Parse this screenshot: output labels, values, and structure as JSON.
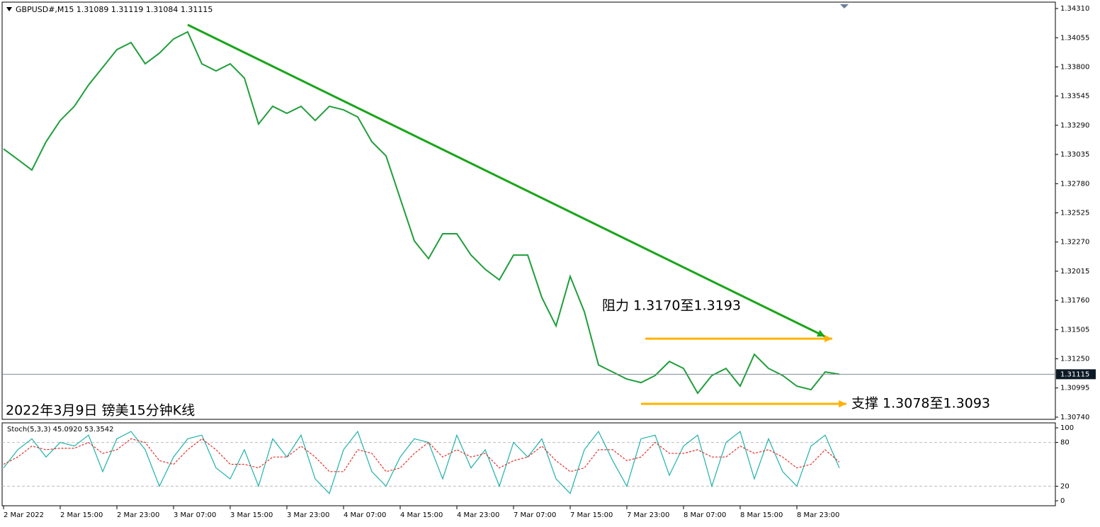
{
  "chart_data": [
    {
      "type": "line",
      "title": "GBPUSD#,M15  1.31089 1.31119 1.31084 1.31115",
      "caption": "2022年3月9日 镑美15分钟K线",
      "resistance_label": "阻力 1.3170至1.3193",
      "support_label": "支撑 1.3078至1.3093",
      "categories": [
        "2 Mar 2022",
        null,
        null,
        null,
        "2 Mar 15:00",
        null,
        null,
        null,
        "2 Mar 23:00",
        null,
        null,
        null,
        "3 Mar 07:00",
        null,
        null,
        null,
        "3 Mar 15:00",
        null,
        null,
        null,
        "3 Mar 23:00",
        null,
        null,
        null,
        "4 Mar 07:00",
        null,
        null,
        null,
        "4 Mar 15:00",
        null,
        null,
        null,
        "4 Mar 23:00",
        null,
        null,
        null,
        "7 Mar 07:00",
        null,
        null,
        null,
        "7 Mar 15:00",
        null,
        null,
        null,
        "7 Mar 23:00",
        null,
        null,
        null,
        "8 Mar 07:00",
        null,
        null,
        null,
        "8 Mar 15:00",
        null,
        null,
        null,
        "8 Mar 23:00",
        null,
        null,
        null
      ],
      "series": [
        {
          "name": "GBPUSD#",
          "color": "#1f9e3a",
          "values": [
            1.33084,
            1.32992,
            1.32899,
            1.33146,
            1.33332,
            1.33456,
            1.33642,
            1.33796,
            1.33951,
            1.34013,
            1.33827,
            1.3392,
            1.34044,
            1.34106,
            1.33827,
            1.33765,
            1.33827,
            1.33703,
            1.33301,
            1.33456,
            1.33394,
            1.33456,
            1.33332,
            1.33456,
            1.33425,
            1.33363,
            1.33146,
            1.33023,
            1.32651,
            1.3228,
            1.32125,
            1.32342,
            1.32342,
            1.32156,
            1.32032,
            1.31939,
            1.32156,
            1.32156,
            1.31785,
            1.31537,
            1.3197,
            1.31661,
            1.31196,
            1.31135,
            1.31073,
            1.31042,
            1.31104,
            1.31227,
            1.31166,
            1.30949,
            1.31104,
            1.31166,
            1.31011,
            1.31289,
            1.31166,
            1.31104,
            1.31011,
            1.3098,
            1.31135,
            1.31115
          ]
        }
      ],
      "current_price": 1.31115,
      "trendlines": [
        {
          "color": "#1aa51a",
          "x": [
            13,
            58
          ],
          "y": [
            1.34168,
            1.31444
          ]
        },
        {
          "color": "#ffb300",
          "x": [
            45.3,
            58.5
          ],
          "y": [
            1.31426,
            1.31426
          ]
        },
        {
          "color": "#ffb300",
          "x": [
            45,
            59.5
          ],
          "y": [
            1.30856,
            1.30856
          ]
        }
      ],
      "ylim": [
        1.30721,
        1.34366
      ],
      "yticks": [
        {
          "value": 1.3431,
          "label": "1.34310"
        },
        1.34055,
        {
          "value": 1.338,
          "label": "1.33800"
        },
        1.33545,
        {
          "value": 1.3329,
          "label": "1.33290"
        },
        1.33035,
        {
          "value": 1.3278,
          "label": "1.32780"
        },
        1.32525,
        {
          "value": 1.3227,
          "label": "1.32270"
        },
        1.32015,
        {
          "value": 1.3176,
          "label": "1.31760"
        },
        1.31505,
        {
          "value": 1.3125,
          "label": "1.31250"
        },
        1.30995,
        {
          "value": 1.3074,
          "label": "1.30740"
        }
      ]
    },
    {
      "type": "line",
      "title": "Stoch(5,3,3) 45.0920 53.3542",
      "series": [
        {
          "name": "%K",
          "color": "#20b2aa",
          "values": [
            45,
            70,
            85,
            60,
            80,
            75,
            90,
            40,
            85,
            95,
            70,
            20,
            60,
            85,
            90,
            45,
            30,
            70,
            20,
            85,
            60,
            90,
            30,
            10,
            70,
            95,
            40,
            20,
            60,
            85,
            80,
            30,
            90,
            45,
            70,
            20,
            80,
            60,
            85,
            30,
            10,
            70,
            95,
            55,
            20,
            85,
            90,
            35,
            75,
            90,
            20,
            80,
            95,
            30,
            85,
            40,
            20,
            75,
            90,
            45
          ]
        },
        {
          "name": "%D",
          "color": "#e0302a",
          "values": [
            50,
            60,
            75,
            70,
            72,
            72,
            80,
            65,
            70,
            85,
            80,
            55,
            50,
            70,
            85,
            70,
            50,
            50,
            45,
            60,
            60,
            75,
            60,
            40,
            40,
            70,
            65,
            40,
            45,
            65,
            80,
            60,
            70,
            60,
            65,
            45,
            55,
            60,
            75,
            55,
            40,
            45,
            70,
            70,
            55,
            60,
            80,
            65,
            65,
            70,
            60,
            60,
            75,
            65,
            70,
            60,
            45,
            50,
            70,
            53
          ]
        }
      ],
      "ylim": [
        0,
        100
      ],
      "yticks": [
        0,
        20,
        80,
        100
      ],
      "levels": [
        20,
        80
      ]
    }
  ]
}
